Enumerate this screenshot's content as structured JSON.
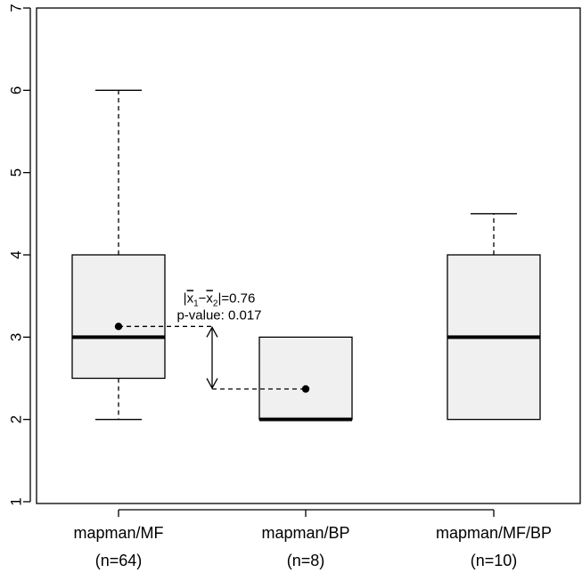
{
  "chart_data": {
    "type": "boxplot",
    "ylim": [
      1,
      7
    ],
    "y_ticks": [
      "1",
      "2",
      "3",
      "4",
      "5",
      "6",
      "7"
    ],
    "grid": false,
    "categories": [
      {
        "name": "mapman/MF",
        "n_label": "(n=64)",
        "whisker_low": 2,
        "q1": 2.5,
        "median": 3,
        "q3": 4,
        "whisker_high": 6,
        "mean": 3.13
      },
      {
        "name": "mapman/BP",
        "n_label": "(n=8)",
        "whisker_low": 2,
        "q1": 2,
        "median": 2,
        "q3": 3,
        "whisker_high": 3,
        "mean": 2.37
      },
      {
        "name": "mapman/MF/BP",
        "n_label": "(n=10)",
        "whisker_low": 2,
        "q1": 2,
        "median": 3,
        "q3": 4,
        "whisker_high": 4.5,
        "mean": null
      }
    ],
    "comparison": {
      "from_index": 0,
      "to_index": 1,
      "diff_label_prefix": "|",
      "x1": "x",
      "sub1": "1",
      "minus": "−",
      "x2": "x",
      "sub2": "2",
      "diff_label_suffix": "|=0.76",
      "p_label": "p-value: 0.017"
    },
    "colors": {
      "box_fill": "#f0f0f0",
      "stroke": "#000000"
    }
  }
}
